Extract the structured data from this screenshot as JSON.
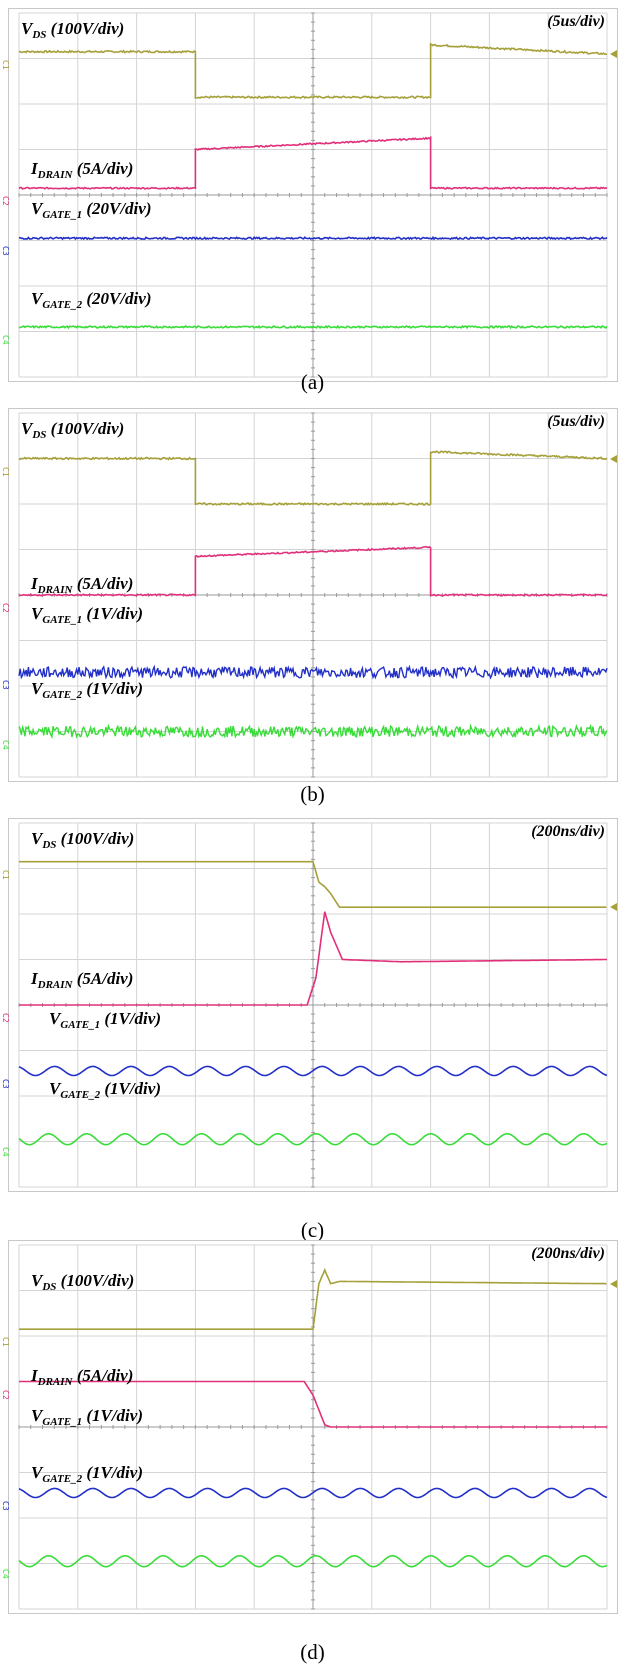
{
  "chart_data": [
    {
      "type": "line",
      "caption": "(a)",
      "timebase": "(5us/div)",
      "grid": true,
      "divisions": {
        "x": 10,
        "y": 8
      },
      "series": [
        {
          "name": "V_DS (100V/div)",
          "main": "V",
          "sub": "DS",
          "rest": " (100V/div)",
          "channel": "C1",
          "color": "#a6a03a",
          "points": [
            [
              0,
              7.15
            ],
            [
              3.0,
              7.15
            ],
            [
              3.0,
              6.15
            ],
            [
              7.0,
              6.15
            ],
            [
              7.0,
              7.3
            ],
            [
              10,
              7.1
            ]
          ],
          "noise": 0.02
        },
        {
          "name": "I_DRAIN (5A/div)",
          "main": "I",
          "sub": "DRAIN",
          "rest": " (5A/div)",
          "channel": "C2",
          "color": "#e0307a",
          "points": [
            [
              0,
              4.15
            ],
            [
              3.0,
              4.15
            ],
            [
              3.0,
              5.0
            ],
            [
              7.0,
              5.25
            ],
            [
              7.0,
              4.15
            ],
            [
              10,
              4.15
            ]
          ],
          "noise": 0.015
        },
        {
          "name": "V_GATE_1 (20V/div)",
          "main": "V",
          "sub": "GATE_1",
          "rest": " (20V/div)",
          "channel": "C3",
          "color": "#2330c8",
          "points": [
            [
              0,
              3.05
            ],
            [
              10,
              3.05
            ]
          ],
          "noise": 0.02
        },
        {
          "name": "V_GATE_2 (20V/div)",
          "main": "V",
          "sub": "GATE_2",
          "rest": " (20V/div)",
          "channel": "C4",
          "color": "#3adc3a",
          "points": [
            [
              0,
              1.1
            ],
            [
              10,
              1.1
            ]
          ],
          "noise": 0.02
        }
      ]
    },
    {
      "type": "line",
      "caption": "(b)",
      "timebase": "(5us/div)",
      "grid": true,
      "divisions": {
        "x": 10,
        "y": 8
      },
      "series": [
        {
          "name": "V_DS (100V/div)",
          "main": "V",
          "sub": "DS",
          "rest": " (100V/div)",
          "channel": "C1",
          "color": "#a6a03a",
          "points": [
            [
              0,
              7.0
            ],
            [
              3.0,
              7.0
            ],
            [
              3.0,
              6.0
            ],
            [
              7.0,
              6.0
            ],
            [
              7.0,
              7.15
            ],
            [
              10,
              7.0
            ]
          ],
          "noise": 0.02
        },
        {
          "name": "I_DRAIN (5A/div)",
          "main": "I",
          "sub": "DRAIN",
          "rest": " (5A/div)",
          "channel": "C2",
          "color": "#e0307a",
          "points": [
            [
              0,
              4.0
            ],
            [
              3.0,
              4.0
            ],
            [
              3.0,
              4.85
            ],
            [
              7.0,
              5.05
            ],
            [
              7.0,
              4.0
            ],
            [
              10,
              4.0
            ]
          ],
          "noise": 0.015
        },
        {
          "name": "V_GATE_1 (1V/div)",
          "main": "V",
          "sub": "GATE_1",
          "rest": " (1V/div)",
          "channel": "C3",
          "color": "#2330c8",
          "points": [
            [
              0,
              2.3
            ],
            [
              10,
              2.3
            ]
          ],
          "noise": 0.12
        },
        {
          "name": "V_GATE_2 (1V/div)",
          "main": "V",
          "sub": "GATE_2",
          "rest": " (1V/div)",
          "channel": "C4",
          "color": "#3adc3a",
          "points": [
            [
              0,
              1.0
            ],
            [
              10,
              1.0
            ]
          ],
          "noise": 0.12
        }
      ]
    },
    {
      "type": "line",
      "caption": "(c)",
      "timebase": "(200ns/div)",
      "grid": true,
      "divisions": {
        "x": 10,
        "y": 8
      },
      "series": [
        {
          "name": "V_DS (100V/div)",
          "main": "V",
          "sub": "DS",
          "rest": " (100V/div)",
          "channel": "C1",
          "color": "#a6a03a",
          "points": [
            [
              0,
              7.15
            ],
            [
              5.0,
              7.15
            ],
            [
              5.1,
              6.7
            ],
            [
              5.2,
              6.6
            ],
            [
              5.3,
              6.45
            ],
            [
              5.45,
              6.15
            ],
            [
              10,
              6.15
            ]
          ],
          "noise": 0.0
        },
        {
          "name": "I_DRAIN (5A/div)",
          "main": "I",
          "sub": "DRAIN",
          "rest": " (5A/div)",
          "channel": "C2",
          "color": "#e0307a",
          "points": [
            [
              0,
              4.0
            ],
            [
              4.9,
              4.0
            ],
            [
              5.05,
              4.6
            ],
            [
              5.2,
              6.05
            ],
            [
              5.3,
              5.6
            ],
            [
              5.5,
              5.0
            ],
            [
              6.5,
              4.95
            ],
            [
              10,
              5.0
            ]
          ],
          "noise": 0.0
        },
        {
          "name": "V_GATE_1 (1V/div)",
          "main": "V",
          "sub": "GATE_1",
          "rest": " (1V/div)",
          "channel": "C3",
          "color": "#2330c8",
          "points": [
            [
              0,
              2.55
            ],
            [
              10,
              2.55
            ]
          ],
          "wave": {
            "amp": 0.1,
            "period": 0.65
          }
        },
        {
          "name": "V_GATE_2 (1V/div)",
          "main": "V",
          "sub": "GATE_2",
          "rest": " (1V/div)",
          "channel": "C4",
          "color": "#3adc3a",
          "points": [
            [
              0,
              1.05
            ],
            [
              10,
              1.05
            ]
          ],
          "wave": {
            "amp": 0.12,
            "period": 0.65
          }
        }
      ]
    },
    {
      "type": "line",
      "caption": "(d)",
      "timebase": "(200ns/div)",
      "grid": true,
      "divisions": {
        "x": 10,
        "y": 8
      },
      "series": [
        {
          "name": "V_DS (100V/div)",
          "main": "V",
          "sub": "DS",
          "rest": " (100V/div)",
          "channel": "C1",
          "color": "#a6a03a",
          "points": [
            [
              0,
              6.15
            ],
            [
              5.0,
              6.15
            ],
            [
              5.1,
              7.15
            ],
            [
              5.2,
              7.45
            ],
            [
              5.3,
              7.15
            ],
            [
              5.45,
              7.2
            ],
            [
              10,
              7.15
            ]
          ],
          "noise": 0.0
        },
        {
          "name": "I_DRAIN (5A/div)",
          "main": "I",
          "sub": "DRAIN",
          "rest": " (5A/div)",
          "channel": "C2",
          "color": "#e0307a",
          "points": [
            [
              0,
              5.0
            ],
            [
              4.85,
              5.0
            ],
            [
              5.0,
              4.7
            ],
            [
              5.2,
              4.05
            ],
            [
              5.3,
              4.0
            ],
            [
              10,
              4.0
            ]
          ],
          "noise": 0.0
        },
        {
          "name": "V_GATE_1 (1V/div)",
          "main": "V",
          "sub": "GATE_1",
          "rest": " (1V/div)",
          "channel": "C3",
          "color": "#2330c8",
          "points": [
            [
              0,
              2.55
            ],
            [
              10,
              2.55
            ]
          ],
          "wave": {
            "amp": 0.1,
            "period": 0.65
          }
        },
        {
          "name": "V_GATE_2 (1V/div)",
          "main": "V",
          "sub": "GATE_2",
          "rest": " (1V/div)",
          "channel": "C4",
          "color": "#3adc3a",
          "points": [
            [
              0,
              1.05
            ],
            [
              10,
              1.05
            ]
          ],
          "wave": {
            "amp": 0.12,
            "period": 0.65
          }
        }
      ]
    }
  ]
}
